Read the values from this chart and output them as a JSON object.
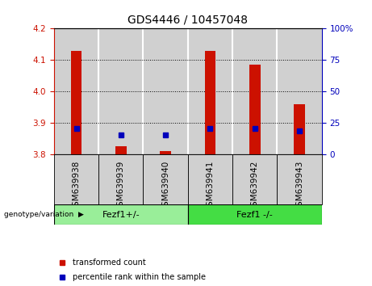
{
  "title": "GDS4446 / 10457048",
  "samples": [
    "GSM639938",
    "GSM639939",
    "GSM639940",
    "GSM639941",
    "GSM639942",
    "GSM639943"
  ],
  "bar_values": [
    4.13,
    3.825,
    3.81,
    4.13,
    4.085,
    3.96
  ],
  "bar_base": 3.8,
  "blue_values": [
    3.883,
    3.862,
    3.862,
    3.883,
    3.883,
    3.874
  ],
  "ylim_left": [
    3.8,
    4.2
  ],
  "ylim_right": [
    0,
    100
  ],
  "yticks_left": [
    3.8,
    3.9,
    4.0,
    4.1,
    4.2
  ],
  "yticks_right": [
    0,
    25,
    50,
    75,
    100
  ],
  "bar_color": "#cc1100",
  "blue_color": "#0000bb",
  "groups": [
    {
      "label": "Fezf1+/-",
      "indices": [
        0,
        1,
        2
      ],
      "color": "#99ee99"
    },
    {
      "label": "Fezf1 -/-",
      "indices": [
        3,
        4,
        5
      ],
      "color": "#44dd44"
    }
  ],
  "group_label": "genotype/variation",
  "legend_items": [
    {
      "label": "transformed count",
      "color": "#cc1100"
    },
    {
      "label": "percentile rank within the sample",
      "color": "#0000bb"
    }
  ],
  "title_fontsize": 10,
  "tick_fontsize": 7.5,
  "bar_width": 0.25,
  "col_bg_color": "#d0d0d0",
  "plot_bg_color": "#ffffff",
  "grid_color": "#000000"
}
